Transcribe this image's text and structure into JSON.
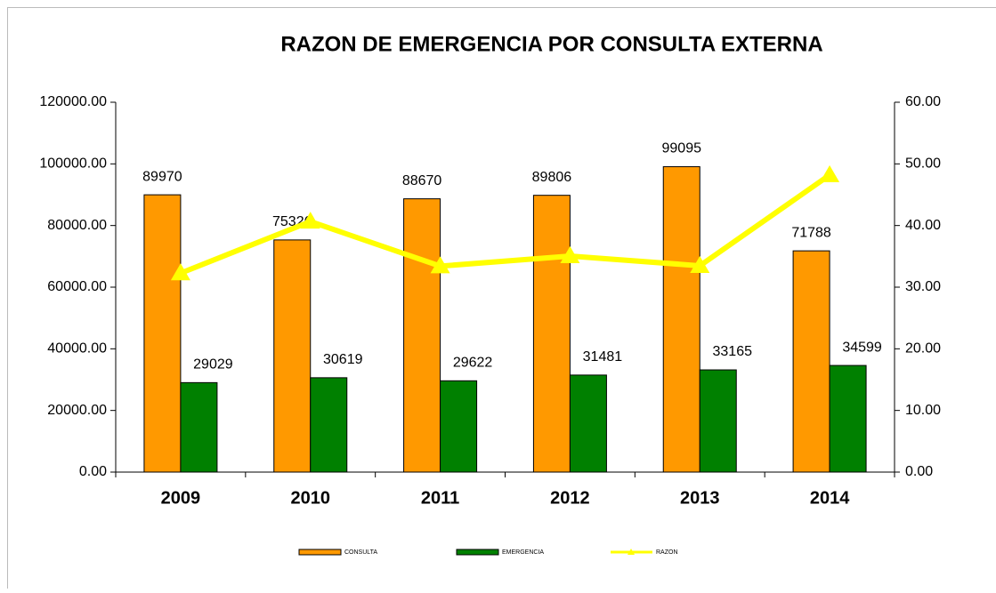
{
  "chart_data": {
    "type": "bar_line",
    "title": "RAZON DE EMERGENCIA POR CONSULTA EXTERNA",
    "categories": [
      "2009",
      "2010",
      "2011",
      "2012",
      "2013",
      "2014"
    ],
    "series": [
      {
        "name": "CONSULTA",
        "color": "#ff9900",
        "type": "bar",
        "values": [
          89970,
          75326,
          88670,
          89806,
          99095,
          71788
        ]
      },
      {
        "name": "EMERGENCIA",
        "color": "#008000",
        "type": "bar",
        "values": [
          29029,
          30619,
          29622,
          31481,
          33165,
          34599
        ]
      },
      {
        "name": "RAZON",
        "color": "#ffff00",
        "type": "line",
        "axis": "y2",
        "values": [
          32.27,
          40.65,
          33.41,
          35.05,
          33.47,
          48.2
        ]
      }
    ],
    "ylim": [
      0,
      120000
    ],
    "yticks": [
      {
        "value": 0,
        "label": "0.00"
      },
      {
        "value": 20000,
        "label": "20000.00"
      },
      {
        "value": 40000,
        "label": "40000.00"
      },
      {
        "value": 60000,
        "label": "60000.00"
      },
      {
        "value": 80000,
        "label": "80000.00"
      },
      {
        "value": 100000,
        "label": "100000.00"
      },
      {
        "value": 120000,
        "label": "120000.00"
      }
    ],
    "y2lim": [
      0,
      60
    ],
    "y2ticks": [
      {
        "value": 0,
        "label": "0.00"
      },
      {
        "value": 10,
        "label": "10.00"
      },
      {
        "value": 20,
        "label": "20.00"
      },
      {
        "value": 30,
        "label": "30.00"
      },
      {
        "value": 40,
        "label": "40.00"
      },
      {
        "value": 50,
        "label": "50.00"
      },
      {
        "value": 60,
        "label": "60.00"
      }
    ],
    "legend": "bottom"
  }
}
